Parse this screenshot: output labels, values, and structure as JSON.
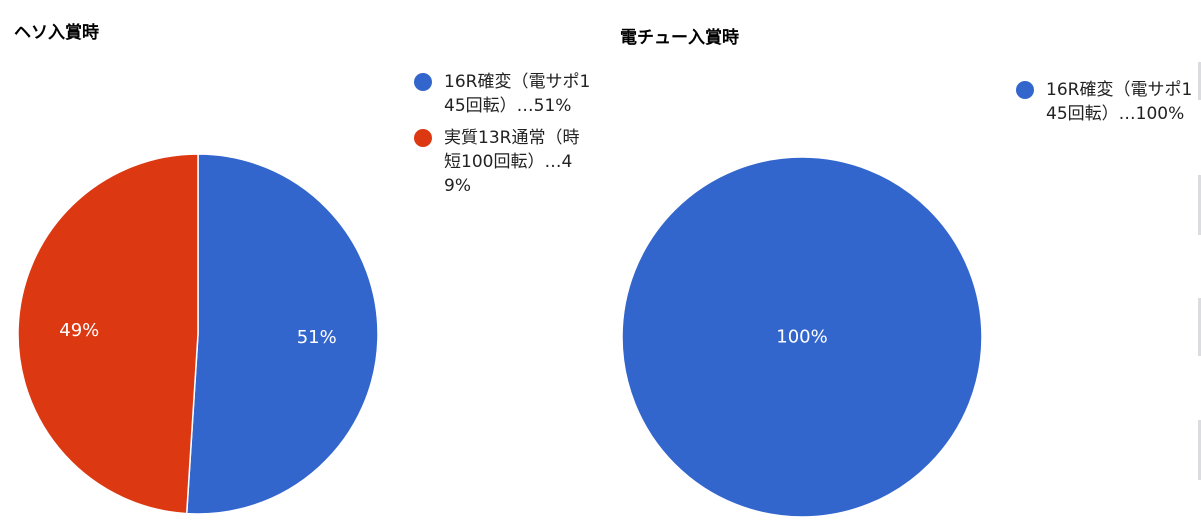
{
  "colors": {
    "blue": "#3366cc",
    "red": "#dc3912"
  },
  "chart_data": [
    {
      "type": "pie",
      "title": "ヘソ入賞時",
      "slices": [
        {
          "label": "16R確変（電サポ145回転）…51%",
          "value": 51,
          "display": "51%",
          "color": "#3366cc"
        },
        {
          "label": "実質13R通常（時短100回転）…49%",
          "value": 49,
          "display": "49%",
          "color": "#dc3912"
        }
      ],
      "legend_position": "right"
    },
    {
      "type": "pie",
      "title": "電チュー入賞時",
      "slices": [
        {
          "label": "16R確変（電サポ145回転）…100%",
          "value": 100,
          "display": "100%",
          "color": "#3366cc"
        }
      ],
      "legend_position": "right"
    }
  ]
}
